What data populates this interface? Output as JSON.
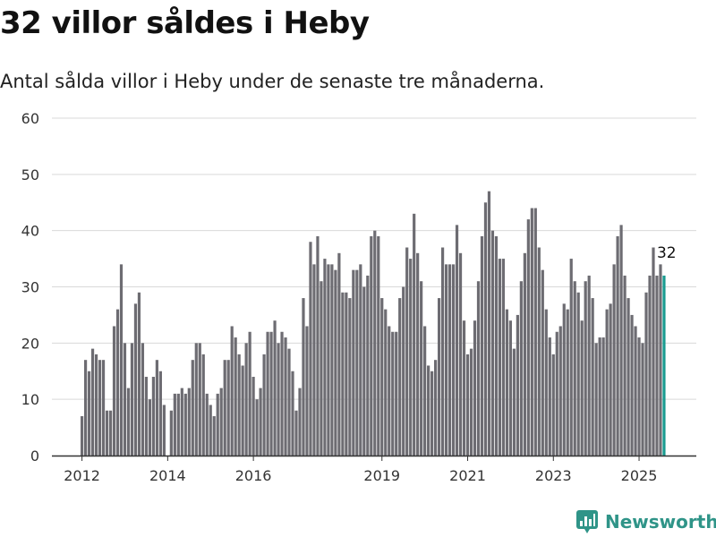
{
  "header": {
    "title": "32 villor såldes i Heby",
    "subtitle": "Antal sålda villor i Heby under de senaste tre månaderna."
  },
  "brand": {
    "name": "Newsworthy",
    "color": "#2f9488"
  },
  "colors": {
    "bar": "#6d6c72",
    "highlight": "#1a9b90",
    "grid": "#d9d9d9",
    "axis": "#333333"
  },
  "chart_data": {
    "type": "bar",
    "title": "32 villor såldes i Heby",
    "subtitle": "Antal sålda villor i Heby under de senaste tre månaderna.",
    "xlabel": "",
    "ylabel": "",
    "ylim": [
      0,
      60
    ],
    "yticks": [
      0,
      10,
      20,
      30,
      40,
      50,
      60
    ],
    "xticks": [
      "2012",
      "2014",
      "2016",
      "2019",
      "2021",
      "2023",
      "2025"
    ],
    "grid": true,
    "start": "2012-01",
    "frequency": "monthly",
    "values": [
      7,
      17,
      15,
      19,
      18,
      17,
      17,
      8,
      8,
      23,
      26,
      34,
      20,
      12,
      20,
      27,
      29,
      20,
      14,
      10,
      14,
      17,
      15,
      9,
      null,
      8,
      11,
      11,
      12,
      11,
      12,
      17,
      20,
      20,
      18,
      11,
      9,
      7,
      11,
      12,
      17,
      17,
      23,
      21,
      18,
      16,
      20,
      22,
      14,
      10,
      12,
      18,
      22,
      22,
      24,
      20,
      22,
      21,
      19,
      15,
      8,
      12,
      28,
      23,
      38,
      34,
      39,
      31,
      35,
      34,
      34,
      33,
      36,
      29,
      29,
      28,
      33,
      33,
      34,
      30,
      32,
      39,
      40,
      39,
      28,
      26,
      23,
      22,
      22,
      28,
      30,
      37,
      35,
      43,
      36,
      31,
      23,
      16,
      15,
      17,
      28,
      37,
      34,
      34,
      34,
      41,
      36,
      24,
      18,
      19,
      24,
      31,
      39,
      45,
      47,
      40,
      39,
      35,
      35,
      26,
      24,
      19,
      25,
      31,
      36,
      42,
      44,
      44,
      37,
      33,
      26,
      21,
      18,
      22,
      23,
      27,
      26,
      35,
      31,
      29,
      24,
      31,
      32,
      28,
      20,
      21,
      21,
      26,
      27,
      34,
      39,
      41,
      32,
      28,
      25,
      23,
      21,
      20,
      29,
      32,
      37,
      32,
      34,
      32
    ],
    "highlight_last": true,
    "data_labels": [
      {
        "index": "last",
        "text": "32"
      }
    ]
  }
}
